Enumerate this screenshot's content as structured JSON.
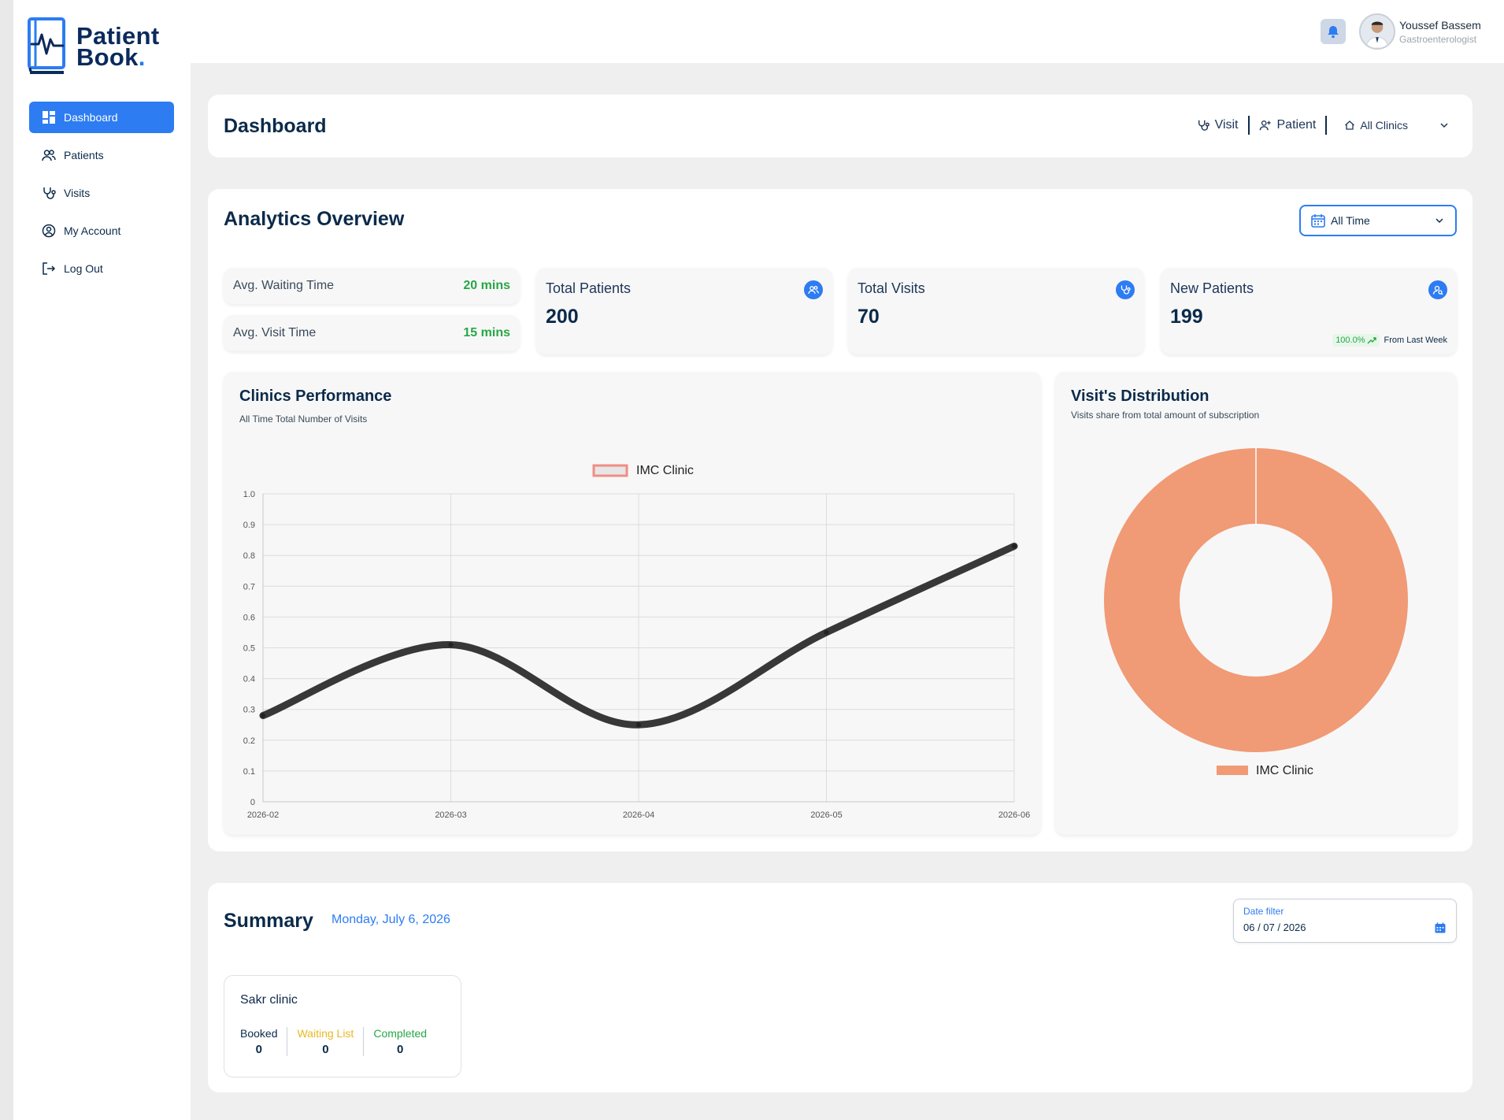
{
  "brand": {
    "line1": "Patient",
    "line2": "Book",
    "dot": "."
  },
  "sidebar": {
    "items": [
      {
        "label": "Dashboard",
        "icon": "dashboard-icon",
        "active": true
      },
      {
        "label": "Patients",
        "icon": "users-icon"
      },
      {
        "label": "Visits",
        "icon": "stethoscope-icon"
      },
      {
        "label": "My Account",
        "icon": "user-circle-icon"
      },
      {
        "label": "Log Out",
        "icon": "logout-icon"
      }
    ]
  },
  "header": {
    "user": {
      "name": "Youssef Bassem",
      "role": "Gastroenterologist"
    }
  },
  "dashboard": {
    "title": "Dashboard",
    "actions": {
      "visit": "Visit",
      "patient": "Patient",
      "clinic_select": "All Clinics"
    }
  },
  "analytics": {
    "title": "Analytics Overview",
    "time_filter": "All Time",
    "avg_waiting": {
      "label": "Avg. Waiting Time",
      "value": "20 mins"
    },
    "avg_visit": {
      "label": "Avg. Visit Time",
      "value": "15 mins"
    },
    "total_patients": {
      "label": "Total Patients",
      "value": "200"
    },
    "total_visits": {
      "label": "Total Visits",
      "value": "70"
    },
    "new_patients": {
      "label": "New Patients",
      "value": "199",
      "trend_pct": "100.0%",
      "trend_text": "From Last Week"
    }
  },
  "clinics_performance": {
    "title": "Clinics Performance",
    "subtitle": "All Time Total Number of Visits"
  },
  "visits_distribution": {
    "title": "Visit's Distribution",
    "subtitle": "Visits share from total amount of subscription"
  },
  "chart_data": [
    {
      "type": "line",
      "title": "Clinics Performance",
      "subtitle": "All Time Total Number of Visits",
      "x": [
        "2026-02",
        "2026-03",
        "2026-04",
        "2026-05",
        "2026-06"
      ],
      "series": [
        {
          "name": "IMC Clinic",
          "values": [
            0.28,
            0.51,
            0.25,
            0.55,
            0.83
          ]
        }
      ],
      "yticks": [
        "0",
        "0.1",
        "0.2",
        "0.3",
        "0.4",
        "0.5",
        "0.6",
        "0.7",
        "0.8",
        "0.9",
        "1.0"
      ],
      "ylim": [
        0,
        1.0
      ],
      "grid": true,
      "legend": "top",
      "line_color": "#222222",
      "legend_color": "#f08d86"
    },
    {
      "type": "pie",
      "title": "Visit's Distribution",
      "subtitle": "Visits share from total amount of subscription",
      "categories": [
        "IMC Clinic"
      ],
      "values": [
        100
      ],
      "colors": [
        "#f09a76"
      ],
      "legend": "bottom"
    }
  ],
  "summary": {
    "title": "Summary",
    "date": "Monday, July 6, 2026",
    "date_filter": {
      "label": "Date filter",
      "value": "06 / 07 / 2026"
    },
    "clinic": {
      "name": "Sakr clinic",
      "booked": {
        "label": "Booked",
        "value": "0"
      },
      "waiting": {
        "label": "Waiting List",
        "value": "0"
      },
      "completed": {
        "label": "Completed",
        "value": "0"
      }
    }
  },
  "colors": {
    "accent": "#2d7cf2",
    "success": "#27a745",
    "warning": "#e8b923",
    "navy": "#0b2a4a"
  }
}
